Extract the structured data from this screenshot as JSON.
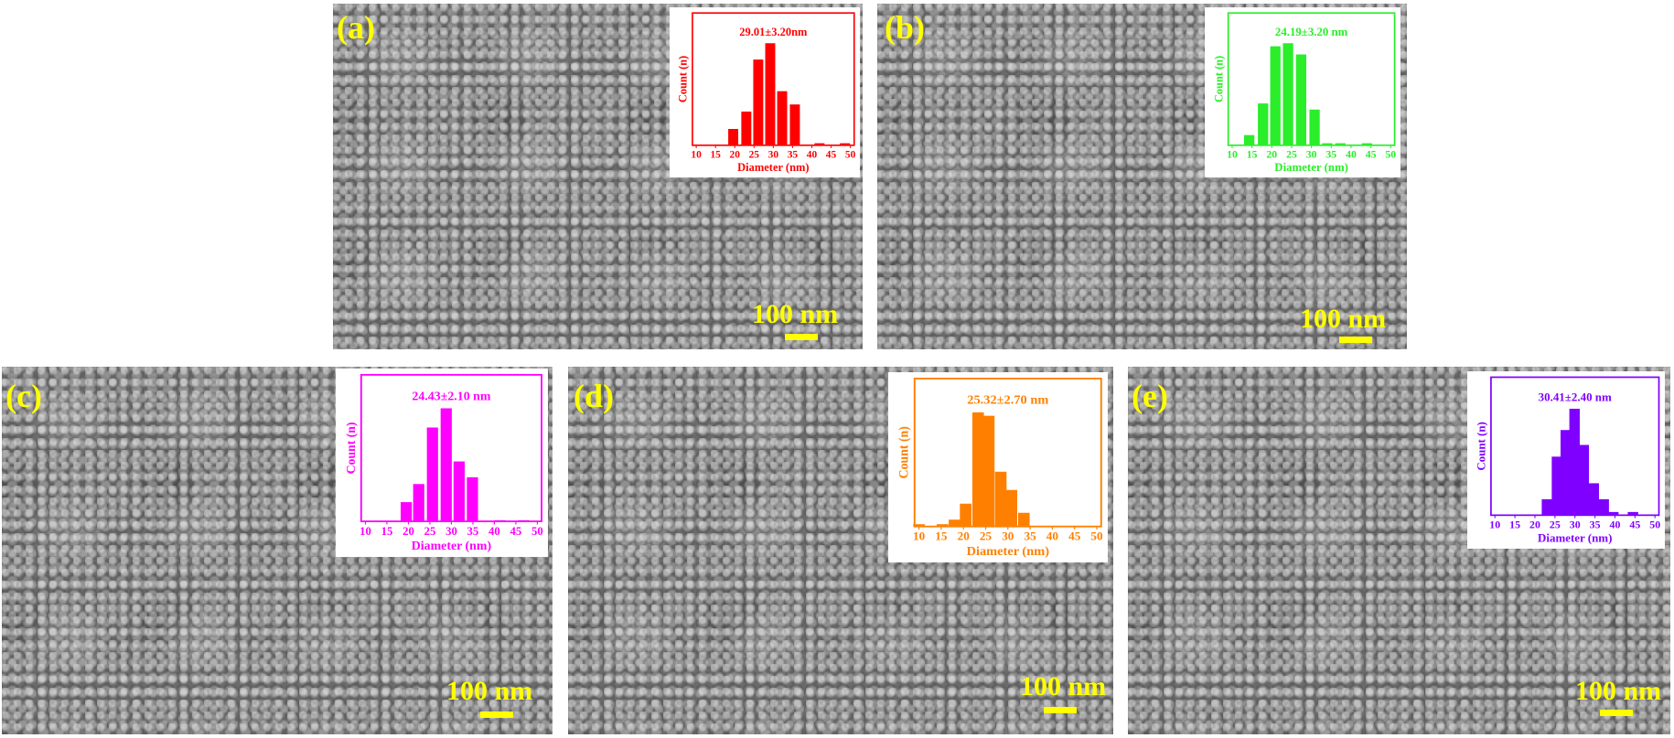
{
  "chart_data": [
    {
      "type": "bar",
      "panel": "(a)",
      "title": "29.01±3.20nm",
      "xlabel": "Diameter (nm)",
      "ylabel": "Count (n)",
      "color": "#ff0000",
      "xlim": [
        10,
        50
      ],
      "xticks": [
        "10",
        "15",
        "20",
        "25",
        "30",
        "35",
        "40",
        "45",
        "50"
      ],
      "ylim": [
        0,
        100
      ],
      "x": [
        19.6,
        23,
        26.1,
        29.2,
        32.3,
        35.6,
        42,
        48.6
      ],
      "values": [
        16,
        33,
        84,
        100,
        53,
        40,
        2,
        2
      ]
    },
    {
      "type": "bar",
      "panel": "(b)",
      "title": "24.19±3.20 nm",
      "xlabel": "Diameter (nm)",
      "ylabel": "Count (n)",
      "color": "#2aee2a",
      "xlim": [
        10,
        50
      ],
      "xticks": [
        "10",
        "15",
        "20",
        "25",
        "30",
        "35",
        "40",
        "45",
        "50"
      ],
      "ylim": [
        0,
        100
      ],
      "x": [
        14.3,
        17.8,
        20.9,
        24.1,
        27.4,
        30.8,
        34,
        37.3,
        44
      ],
      "values": [
        10,
        41,
        97,
        100,
        89,
        35,
        2,
        2,
        2
      ]
    },
    {
      "type": "bar",
      "panel": "(c)",
      "title": "24.43±2.10 nm",
      "xlabel": "Diameter (nm)",
      "ylabel": "Count (n)",
      "color": "#ff00ff",
      "xlim": [
        10,
        50
      ],
      "xticks": [
        "10",
        "15",
        "20",
        "25",
        "30",
        "35",
        "40",
        "45",
        "50"
      ],
      "ylim": [
        0,
        100
      ],
      "x": [
        19.5,
        22.4,
        25.6,
        28.8,
        31.8,
        34.9,
        41.3,
        46.8
      ],
      "values": [
        17,
        33,
        83,
        100,
        53,
        39,
        1,
        1
      ]
    },
    {
      "type": "bar",
      "panel": "(d)",
      "title": "25.32±2.70 nm",
      "xlabel": "Diameter (nm)",
      "ylabel": "Count (n)",
      "color": "#ff8000",
      "xlim": [
        10,
        50
      ],
      "xticks": [
        "10",
        "15",
        "20",
        "25",
        "30",
        "35",
        "40",
        "45",
        "50"
      ],
      "ylim": [
        0,
        100
      ],
      "x": [
        10,
        15.3,
        18,
        20.5,
        23.3,
        25.7,
        28.4,
        30.8,
        33.6
      ],
      "values": [
        2,
        2,
        6,
        20,
        100,
        97,
        48,
        32,
        12
      ]
    },
    {
      "type": "bar",
      "panel": "(e)",
      "title": "30.41±2.40 nm",
      "xlabel": "Diameter (nm)",
      "ylabel": "Count (n)",
      "color": "#7f00ff",
      "xlim": [
        10,
        50
      ],
      "xticks": [
        "10",
        "15",
        "20",
        "25",
        "30",
        "35",
        "40",
        "45",
        "50"
      ],
      "ylim": [
        0,
        100
      ],
      "x": [
        23,
        25.5,
        27.7,
        29.9,
        32.2,
        34.7,
        37.2,
        39.6,
        44.5
      ],
      "values": [
        15,
        55,
        80,
        100,
        66,
        30,
        15,
        3,
        3
      ]
    }
  ],
  "panels": [
    {
      "label": "(a)",
      "scale_bar": "100 nm"
    },
    {
      "label": "(b)",
      "scale_bar": "100 nm"
    },
    {
      "label": "(c)",
      "scale_bar": "100 nm"
    },
    {
      "label": "(d)",
      "scale_bar": "100 nm"
    },
    {
      "label": "(e)",
      "scale_bar": "100 nm"
    }
  ]
}
